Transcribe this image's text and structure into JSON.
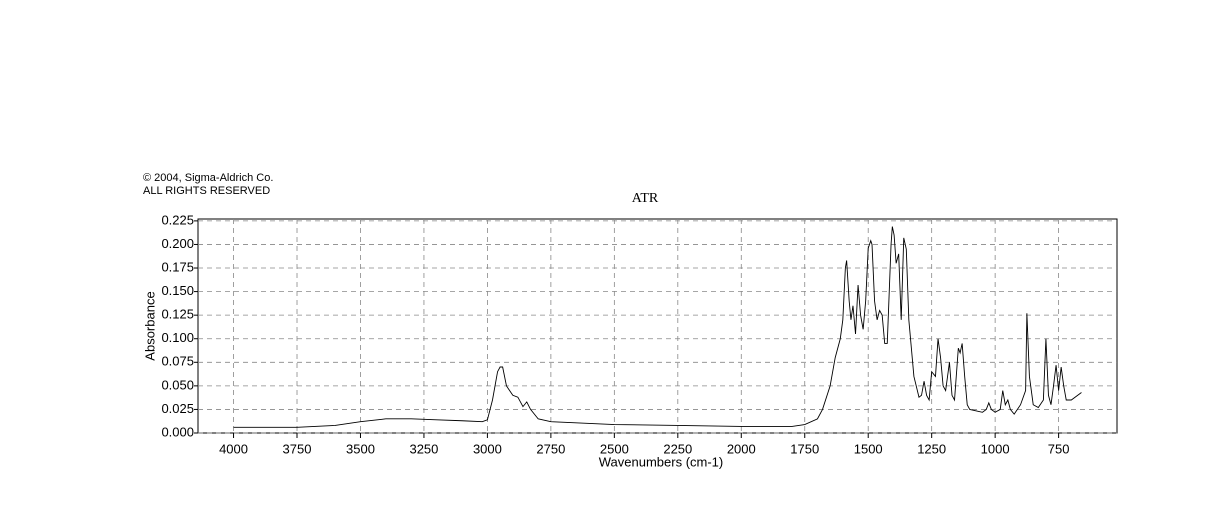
{
  "chart_data": {
    "type": "line",
    "copyright": "© 2004, Sigma-Aldrich Co.",
    "rights": "ALL RIGHTS RESERVED",
    "title": "ATR",
    "x_label": "Wavenumbers (cm-1)",
    "y_label": "Absorbance",
    "xlim": [
      4140,
      520
    ],
    "ylim": [
      0,
      0.227
    ],
    "xticks": [
      4000,
      3750,
      3500,
      3250,
      3000,
      2750,
      2500,
      2250,
      2000,
      1750,
      1500,
      1250,
      1000,
      750
    ],
    "yticks": [
      {
        "value": 0,
        "label": "0.000"
      },
      {
        "value": 0.025,
        "label": "0.025"
      },
      {
        "value": 0.05,
        "label": "0.050"
      },
      {
        "value": 0.075,
        "label": "0.075"
      },
      {
        "value": 0.1,
        "label": "0.100"
      },
      {
        "value": 0.125,
        "label": "0.125"
      },
      {
        "value": 0.15,
        "label": "0.150"
      },
      {
        "value": 0.175,
        "label": "0.175"
      },
      {
        "value": 0.2,
        "label": "0.200"
      },
      {
        "value": 0.225,
        "label": "0.225"
      }
    ],
    "grid": true,
    "series": [
      {
        "color": "#000000",
        "x": [
          4000,
          3750,
          3600,
          3500,
          3400,
          3300,
          3200,
          3100,
          3020,
          3000,
          2980,
          2960,
          2950,
          2940,
          2925,
          2900,
          2880,
          2860,
          2845,
          2830,
          2800,
          2750,
          2500,
          2250,
          2000,
          1800,
          1750,
          1700,
          1680,
          1650,
          1630,
          1610,
          1600,
          1590,
          1585,
          1575,
          1568,
          1560,
          1550,
          1540,
          1530,
          1520,
          1510,
          1500,
          1490,
          1485,
          1475,
          1465,
          1455,
          1445,
          1435,
          1425,
          1410,
          1405,
          1398,
          1390,
          1380,
          1370,
          1360,
          1350,
          1340,
          1320,
          1300,
          1290,
          1280,
          1270,
          1260,
          1250,
          1235,
          1225,
          1215,
          1205,
          1195,
          1180,
          1170,
          1160,
          1145,
          1138,
          1130,
          1120,
          1110,
          1100,
          1050,
          1035,
          1025,
          1015,
          1000,
          980,
          970,
          960,
          950,
          940,
          925,
          900,
          880,
          875,
          865,
          850,
          830,
          810,
          800,
          790,
          780,
          770,
          760,
          750,
          740,
          730,
          720,
          700,
          660
        ],
        "values": [
          0.006,
          0.006,
          0.008,
          0.012,
          0.015,
          0.015,
          0.014,
          0.013,
          0.012,
          0.014,
          0.035,
          0.065,
          0.07,
          0.07,
          0.05,
          0.04,
          0.038,
          0.028,
          0.033,
          0.025,
          0.015,
          0.012,
          0.009,
          0.008,
          0.007,
          0.007,
          0.009,
          0.015,
          0.025,
          0.05,
          0.08,
          0.1,
          0.12,
          0.175,
          0.183,
          0.14,
          0.12,
          0.135,
          0.105,
          0.157,
          0.125,
          0.11,
          0.14,
          0.196,
          0.204,
          0.2,
          0.14,
          0.12,
          0.13,
          0.125,
          0.095,
          0.095,
          0.2,
          0.219,
          0.21,
          0.18,
          0.19,
          0.12,
          0.207,
          0.195,
          0.12,
          0.06,
          0.038,
          0.04,
          0.055,
          0.04,
          0.035,
          0.065,
          0.06,
          0.1,
          0.08,
          0.05,
          0.045,
          0.075,
          0.04,
          0.035,
          0.09,
          0.085,
          0.095,
          0.06,
          0.03,
          0.025,
          0.022,
          0.025,
          0.032,
          0.025,
          0.022,
          0.025,
          0.045,
          0.03,
          0.035,
          0.025,
          0.02,
          0.03,
          0.045,
          0.127,
          0.06,
          0.03,
          0.027,
          0.035,
          0.1,
          0.04,
          0.03,
          0.05,
          0.072,
          0.045,
          0.07,
          0.05,
          0.035,
          0.035,
          0.043
        ]
      }
    ]
  }
}
